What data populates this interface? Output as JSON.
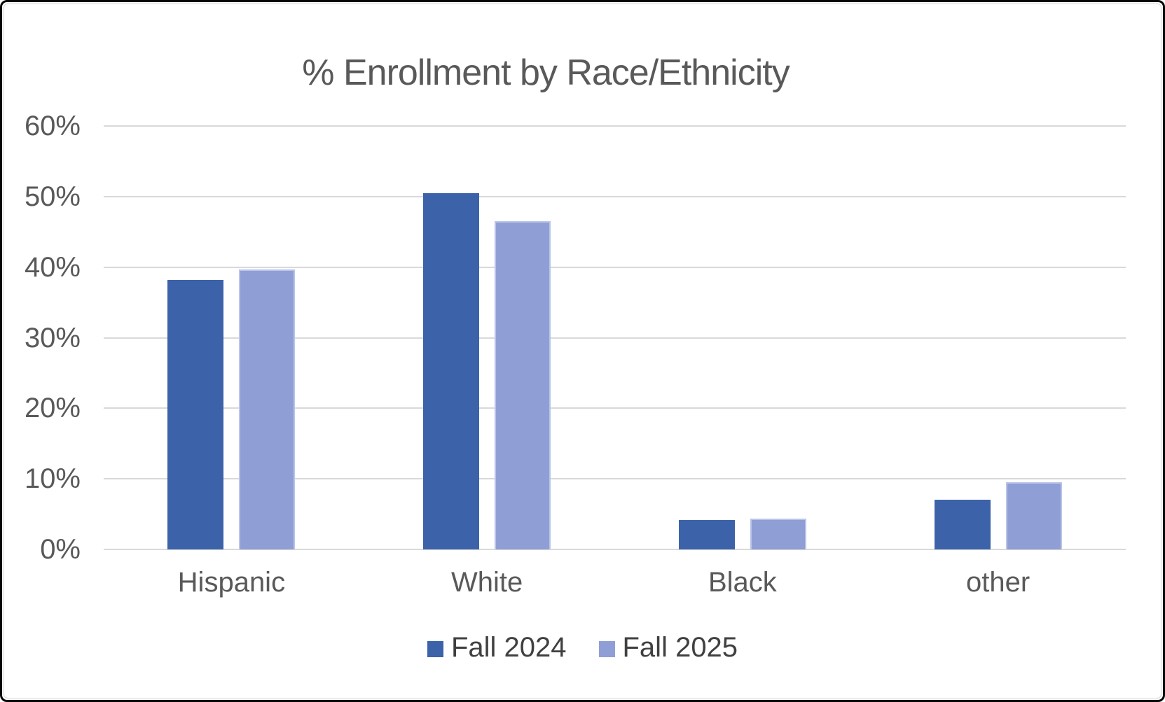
{
  "chart_data": {
    "type": "bar",
    "title": "% Enrollment by Race/Ethnicity",
    "categories": [
      "Hispanic",
      "White",
      "Black",
      "other"
    ],
    "series": [
      {
        "name": "Fall 2024",
        "color": "#3c63a9",
        "values": [
          38.2,
          50.5,
          4.2,
          7.0
        ]
      },
      {
        "name": "Fall 2025",
        "color": "#8f9fd5",
        "border_color": "#b9c4e8",
        "values": [
          39.7,
          46.5,
          4.4,
          9.5
        ]
      }
    ],
    "xlabel": "",
    "ylabel": "",
    "ylim": [
      0,
      60
    ],
    "y_ticks": [
      "0%",
      "10%",
      "20%",
      "30%",
      "40%",
      "50%",
      "60%"
    ],
    "grid": "horizontal",
    "legend_position": "bottom",
    "gridline_color": "#d9d9d9",
    "text_color": "#595959",
    "background_color": "#ffffff",
    "frame_border_color": "#060606"
  }
}
